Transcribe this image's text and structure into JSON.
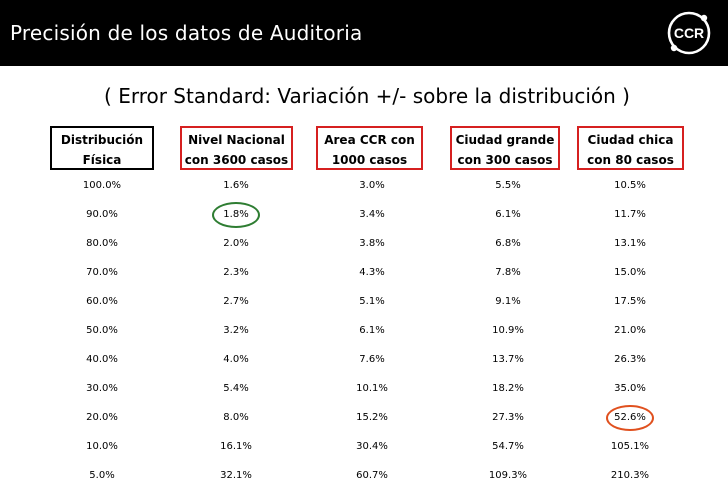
{
  "header": {
    "title": "Precisión de los datos de Auditoria",
    "logo_text": "CCR"
  },
  "subtitle": "( Error Standard: Variación +/- sobre la distribución )",
  "columns": [
    {
      "line1": "Distribución",
      "line2": "Física"
    },
    {
      "line1": "Nivel Nacional",
      "line2": "con 3600 casos"
    },
    {
      "line1": "Area CCR con",
      "line2": "1000 casos"
    },
    {
      "line1": "Ciudad grande",
      "line2": "con 300 casos"
    },
    {
      "line1": "Ciudad chica",
      "line2": "con 80 casos"
    }
  ],
  "rows": [
    [
      "100.0%",
      "1.6%",
      "3.0%",
      "5.5%",
      "10.5%"
    ],
    [
      "90.0%",
      "1.8%",
      "3.4%",
      "6.1%",
      "11.7%"
    ],
    [
      "80.0%",
      "2.0%",
      "3.8%",
      "6.8%",
      "13.1%"
    ],
    [
      "70.0%",
      "2.3%",
      "4.3%",
      "7.8%",
      "15.0%"
    ],
    [
      "60.0%",
      "2.7%",
      "5.1%",
      "9.1%",
      "17.5%"
    ],
    [
      "50.0%",
      "3.2%",
      "6.1%",
      "10.9%",
      "21.0%"
    ],
    [
      "40.0%",
      "4.0%",
      "7.6%",
      "13.7%",
      "26.3%"
    ],
    [
      "30.0%",
      "5.4%",
      "10.1%",
      "18.2%",
      "35.0%"
    ],
    [
      "20.0%",
      "8.0%",
      "15.2%",
      "27.3%",
      "52.6%"
    ],
    [
      "10.0%",
      "16.1%",
      "30.4%",
      "54.7%",
      "105.1%"
    ],
    [
      "5.0%",
      "32.1%",
      "60.7%",
      "109.3%",
      "210.3%"
    ]
  ],
  "highlights": [
    {
      "row": 1,
      "col": 1,
      "color": "#2e7d32"
    },
    {
      "row": 8,
      "col": 4,
      "color": "#e0501e"
    }
  ],
  "colors": {
    "header_bg": "#000000",
    "header_text": "#ffffff",
    "box_red": "#d62020",
    "box_black": "#000000"
  }
}
